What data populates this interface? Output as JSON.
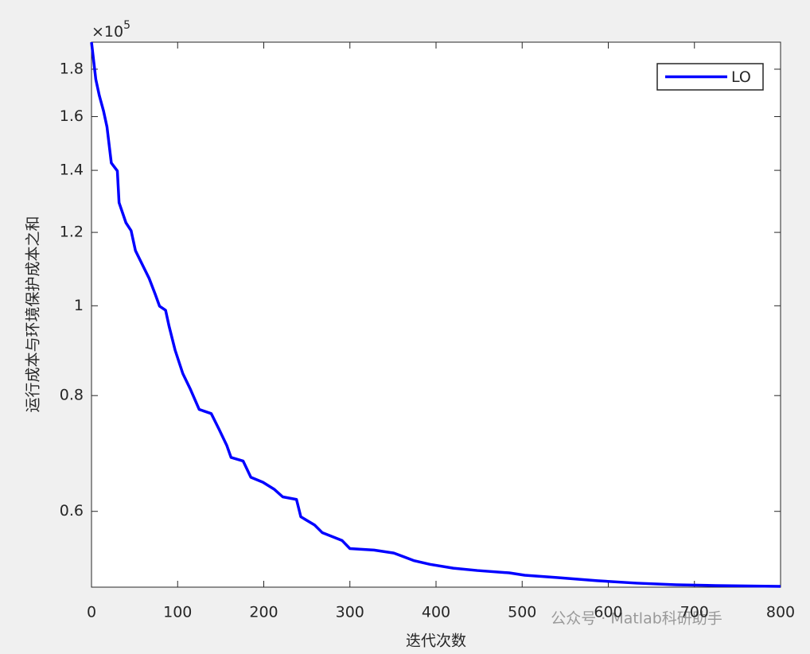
{
  "chart_data": {
    "type": "line",
    "xlabel": "迭代次数",
    "ylabel": "运行成本与环境保护成本之和",
    "y_multiplier": "×10",
    "y_multiplier_exp": "5",
    "watermark": "公众号 · Matlab科研助手",
    "x": [
      0,
      5,
      9,
      14,
      18,
      23,
      30,
      32,
      40,
      46,
      51,
      60,
      67,
      74,
      79,
      86,
      90,
      97,
      106,
      115,
      125,
      139,
      148,
      157,
      162,
      176,
      185,
      199,
      212,
      222,
      238,
      243,
      259,
      268,
      291,
      300,
      328,
      351,
      374,
      393,
      420,
      448,
      485,
      503,
      540,
      587,
      633,
      679,
      725,
      800
    ],
    "series": [
      {
        "name": "LO",
        "color": "#0000ff",
        "values": [
          1.925,
          1.755,
          1.687,
          1.622,
          1.559,
          1.426,
          1.398,
          1.292,
          1.229,
          1.205,
          1.147,
          1.103,
          1.07,
          1.029,
          0.999,
          0.989,
          0.951,
          0.896,
          0.845,
          0.812,
          0.773,
          0.765,
          0.736,
          0.707,
          0.686,
          0.68,
          0.653,
          0.645,
          0.634,
          0.622,
          0.618,
          0.592,
          0.58,
          0.569,
          0.558,
          0.547,
          0.545,
          0.541,
          0.531,
          0.526,
          0.521,
          0.518,
          0.515,
          0.512,
          0.509,
          0.505,
          0.502,
          0.5,
          0.499,
          0.498
        ]
      }
    ],
    "xlim": [
      0,
      800
    ],
    "xticks": [
      0,
      100,
      200,
      300,
      400,
      500,
      600,
      700,
      800
    ],
    "ylim": [
      0.497,
      1.925
    ],
    "yticks": [
      0.6,
      0.8,
      1,
      1.2,
      1.4,
      1.6,
      1.8
    ],
    "ylog": true,
    "grid": false,
    "legend": "upper right"
  }
}
